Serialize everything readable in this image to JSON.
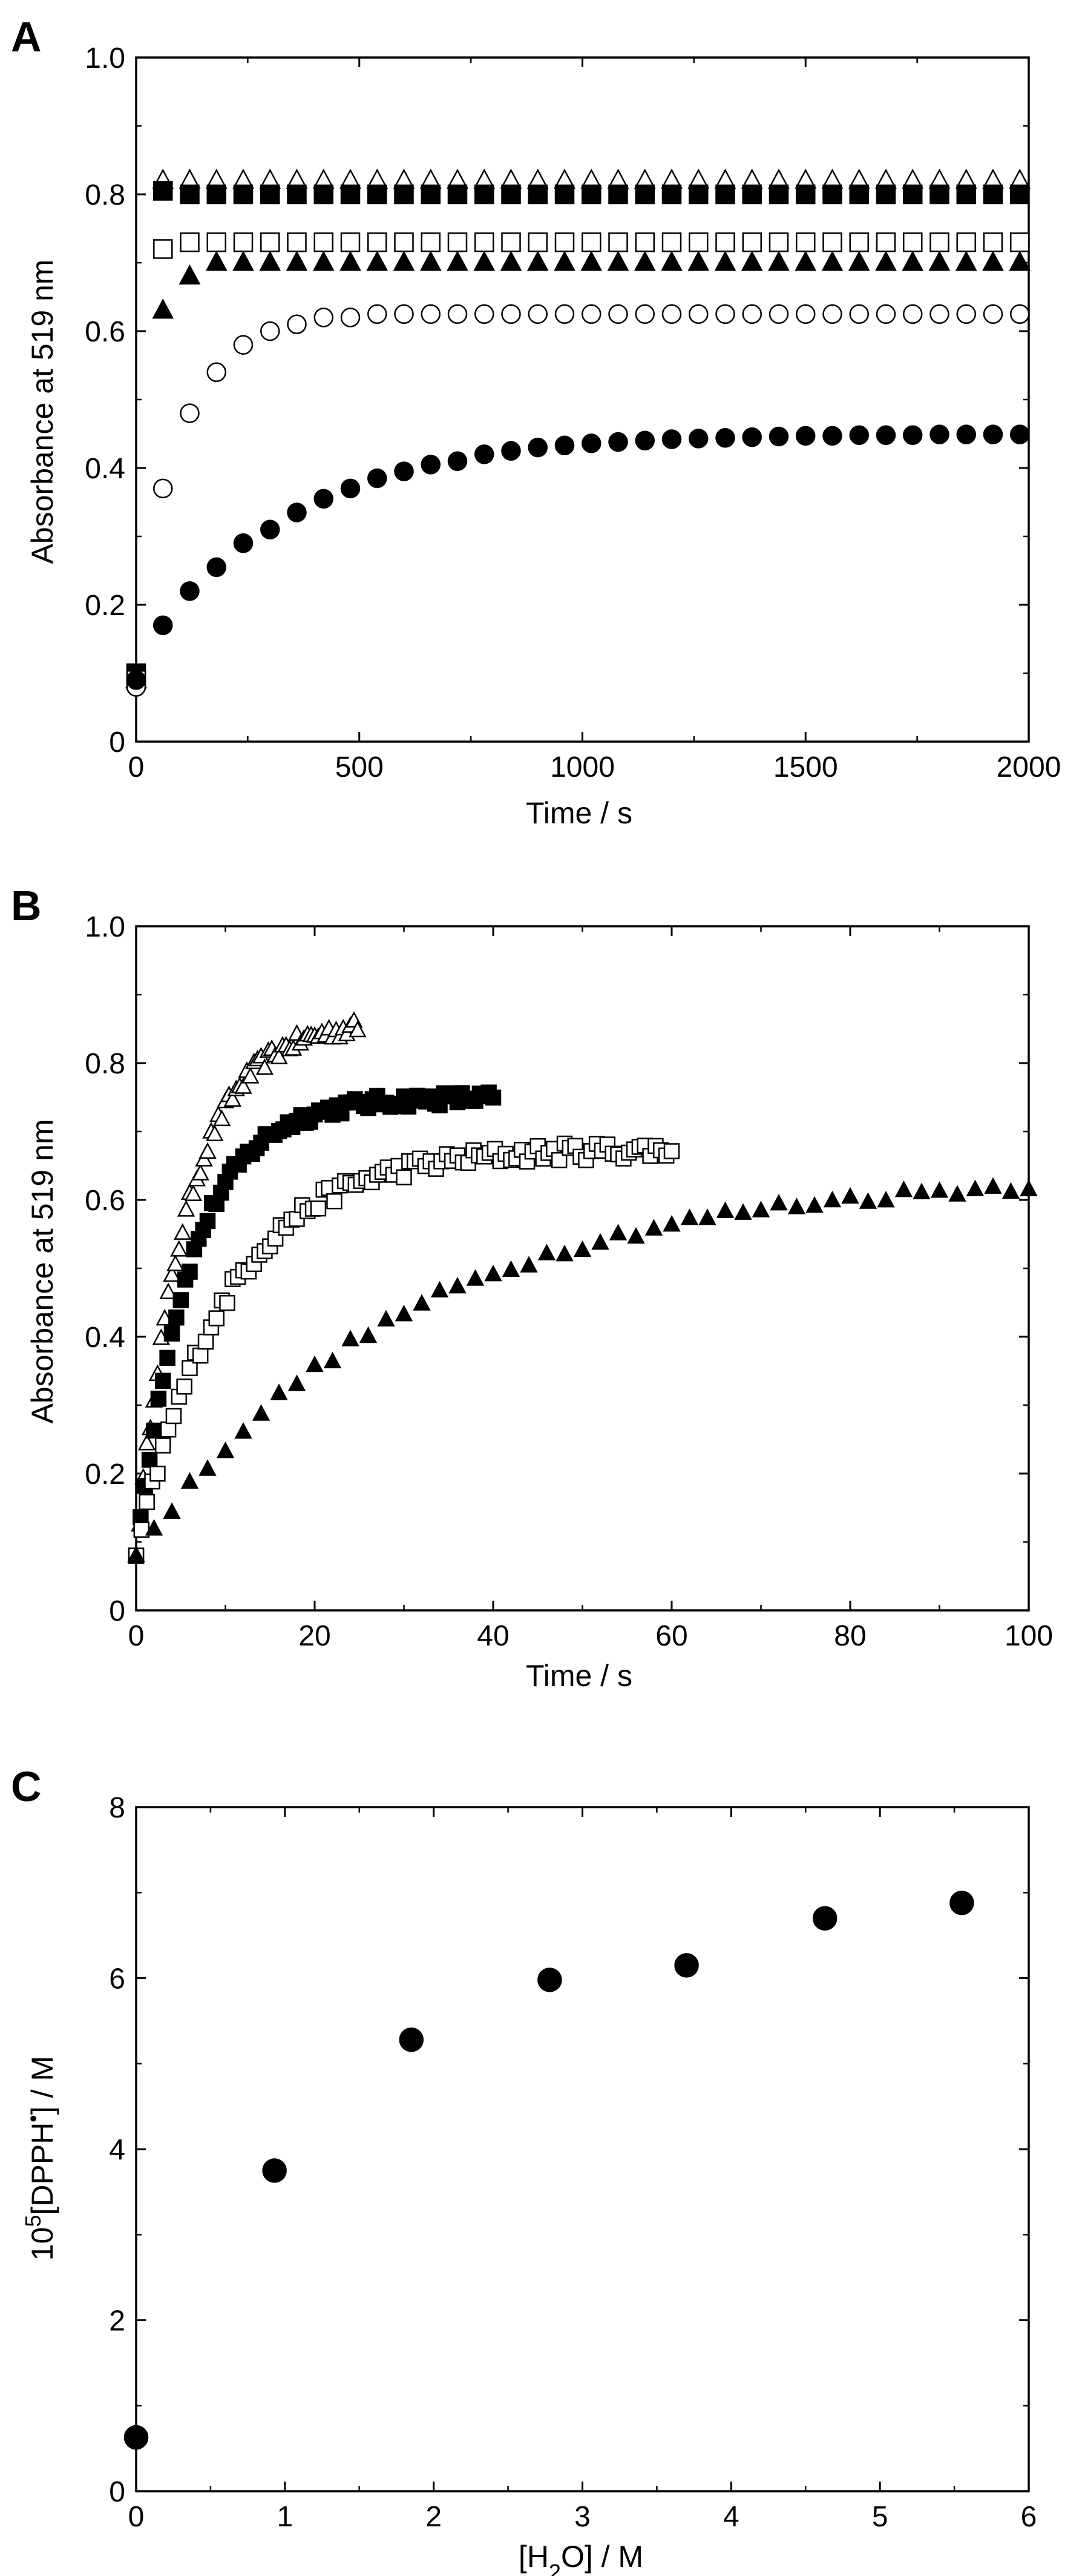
{
  "chart_data": [
    {
      "type": "scatter",
      "panel": "A",
      "xlabel": "Time / s",
      "ylabel": "Absorbance at 519 nm",
      "xlim": [
        0,
        2000
      ],
      "ylim": [
        0,
        1.0
      ],
      "xticks": [
        "0",
        "500",
        "1000",
        "1500",
        "2000"
      ],
      "yticks": [
        "0",
        "0.2",
        "0.4",
        "0.6",
        "0.8",
        "1.0"
      ],
      "grid": false,
      "series": [
        {
          "name": "open-triangle",
          "marker": "triangle-open",
          "x": [
            0,
            60,
            120,
            180,
            240,
            300,
            360,
            420,
            480,
            540,
            600,
            660,
            720,
            780,
            840,
            900,
            960,
            1020,
            1080,
            1140,
            1200,
            1260,
            1320,
            1380,
            1440,
            1500,
            1560,
            1620,
            1680,
            1740,
            1800,
            1860,
            1920,
            1980
          ],
          "y": [
            0.09,
            0.82,
            0.82,
            0.82,
            0.82,
            0.82,
            0.82,
            0.82,
            0.82,
            0.82,
            0.82,
            0.82,
            0.82,
            0.82,
            0.82,
            0.82,
            0.82,
            0.82,
            0.82,
            0.82,
            0.82,
            0.82,
            0.82,
            0.82,
            0.82,
            0.82,
            0.82,
            0.82,
            0.82,
            0.82,
            0.82,
            0.82,
            0.82,
            0.82
          ]
        },
        {
          "name": "filled-square",
          "marker": "square-filled",
          "x": [
            0,
            60,
            120,
            180,
            240,
            300,
            360,
            420,
            480,
            540,
            600,
            660,
            720,
            780,
            840,
            900,
            960,
            1020,
            1080,
            1140,
            1200,
            1260,
            1320,
            1380,
            1440,
            1500,
            1560,
            1620,
            1680,
            1740,
            1800,
            1860,
            1920,
            1980
          ],
          "y": [
            0.1,
            0.805,
            0.8,
            0.8,
            0.8,
            0.8,
            0.8,
            0.8,
            0.8,
            0.8,
            0.8,
            0.8,
            0.8,
            0.8,
            0.8,
            0.8,
            0.8,
            0.8,
            0.8,
            0.8,
            0.8,
            0.8,
            0.8,
            0.8,
            0.8,
            0.8,
            0.8,
            0.8,
            0.8,
            0.8,
            0.8,
            0.8,
            0.8,
            0.8
          ]
        },
        {
          "name": "open-square",
          "marker": "square-open",
          "x": [
            0,
            60,
            120,
            180,
            240,
            300,
            360,
            420,
            480,
            540,
            600,
            660,
            720,
            780,
            840,
            900,
            960,
            1020,
            1080,
            1140,
            1200,
            1260,
            1320,
            1380,
            1440,
            1500,
            1560,
            1620,
            1680,
            1740,
            1800,
            1860,
            1920,
            1980
          ],
          "y": [
            0.09,
            0.72,
            0.73,
            0.73,
            0.73,
            0.73,
            0.73,
            0.73,
            0.73,
            0.73,
            0.73,
            0.73,
            0.73,
            0.73,
            0.73,
            0.73,
            0.73,
            0.73,
            0.73,
            0.73,
            0.73,
            0.73,
            0.73,
            0.73,
            0.73,
            0.73,
            0.73,
            0.73,
            0.73,
            0.73,
            0.73,
            0.73,
            0.73,
            0.73
          ]
        },
        {
          "name": "filled-triangle",
          "marker": "triangle-filled",
          "x": [
            0,
            60,
            120,
            180,
            240,
            300,
            360,
            420,
            480,
            540,
            600,
            660,
            720,
            780,
            840,
            900,
            960,
            1020,
            1080,
            1140,
            1200,
            1260,
            1320,
            1380,
            1440,
            1500,
            1560,
            1620,
            1680,
            1740,
            1800,
            1860,
            1920,
            1980
          ],
          "y": [
            0.09,
            0.63,
            0.68,
            0.7,
            0.7,
            0.7,
            0.7,
            0.7,
            0.7,
            0.7,
            0.7,
            0.7,
            0.7,
            0.7,
            0.7,
            0.7,
            0.7,
            0.7,
            0.7,
            0.7,
            0.7,
            0.7,
            0.7,
            0.7,
            0.7,
            0.7,
            0.7,
            0.7,
            0.7,
            0.7,
            0.7,
            0.7,
            0.7,
            0.7
          ]
        },
        {
          "name": "open-circle",
          "marker": "circle-open",
          "x": [
            0,
            60,
            120,
            180,
            240,
            300,
            360,
            420,
            480,
            540,
            600,
            660,
            720,
            780,
            840,
            900,
            960,
            1020,
            1080,
            1140,
            1200,
            1260,
            1320,
            1380,
            1440,
            1500,
            1560,
            1620,
            1680,
            1740,
            1800,
            1860,
            1920,
            1980
          ],
          "y": [
            0.08,
            0.37,
            0.48,
            0.54,
            0.58,
            0.6,
            0.61,
            0.62,
            0.62,
            0.625,
            0.625,
            0.625,
            0.625,
            0.625,
            0.625,
            0.625,
            0.625,
            0.625,
            0.625,
            0.625,
            0.625,
            0.625,
            0.625,
            0.625,
            0.625,
            0.625,
            0.625,
            0.625,
            0.625,
            0.625,
            0.625,
            0.625,
            0.625,
            0.625
          ]
        },
        {
          "name": "filled-circle",
          "marker": "circle-filled",
          "x": [
            0,
            60,
            120,
            180,
            240,
            300,
            360,
            420,
            480,
            540,
            600,
            660,
            720,
            780,
            840,
            900,
            960,
            1020,
            1080,
            1140,
            1200,
            1260,
            1320,
            1380,
            1440,
            1500,
            1560,
            1620,
            1680,
            1740,
            1800,
            1860,
            1920,
            1980
          ],
          "y": [
            0.09,
            0.17,
            0.22,
            0.255,
            0.29,
            0.31,
            0.335,
            0.355,
            0.37,
            0.385,
            0.395,
            0.405,
            0.41,
            0.42,
            0.425,
            0.43,
            0.433,
            0.436,
            0.438,
            0.44,
            0.442,
            0.443,
            0.444,
            0.445,
            0.446,
            0.447,
            0.447,
            0.448,
            0.448,
            0.448,
            0.449,
            0.449,
            0.449,
            0.449
          ]
        }
      ]
    },
    {
      "type": "scatter",
      "panel": "B",
      "xlabel": "Time / s",
      "ylabel": "Absorbance at 519 nm",
      "xlim": [
        0,
        100
      ],
      "ylim": [
        0,
        1.0
      ],
      "xticks": [
        "0",
        "20",
        "40",
        "60",
        "80",
        "100"
      ],
      "yticks": [
        "0",
        "0.2",
        "0.4",
        "0.6",
        "0.8",
        "1.0"
      ],
      "grid": false,
      "series": [
        {
          "name": "open-triangle",
          "marker": "triangle-open",
          "curve": {
            "A0": 0.08,
            "Ainf": 0.86,
            "tau": 5.5,
            "xmax": 25,
            "dx": 0.4,
            "noise": 0.012
          }
        },
        {
          "name": "filled-square",
          "marker": "square-filled",
          "curve": {
            "A0": 0.08,
            "Ainf": 0.75,
            "tau": 6.0,
            "xmax": 40,
            "dx": 0.5,
            "noise": 0.01
          }
        },
        {
          "name": "open-square",
          "marker": "square-open",
          "curve": {
            "A0": 0.08,
            "Ainf": 0.675,
            "tau": 10.0,
            "xmax": 60,
            "dx": 0.6,
            "noise": 0.013
          }
        },
        {
          "name": "filled-triangle",
          "marker": "triangle-filled",
          "curve": {
            "A0": 0.08,
            "Ainf": 0.64,
            "tau": 30.0,
            "xmax": 100,
            "dx": 2.0,
            "noise": 0.008
          }
        }
      ]
    },
    {
      "type": "scatter",
      "panel": "C",
      "xlabel": "[H2O] / M",
      "ylabel": "10^5[DPPH•] / M",
      "xlim": [
        0,
        6
      ],
      "ylim": [
        0,
        8
      ],
      "xticks": [
        "0",
        "1",
        "2",
        "3",
        "4",
        "5",
        "6"
      ],
      "yticks": [
        "0",
        "2",
        "4",
        "6",
        "8"
      ],
      "grid": false,
      "series": [
        {
          "name": "DPPH",
          "marker": "circle-filled",
          "x": [
            0,
            0.93,
            1.85,
            2.78,
            3.7,
            4.63,
            5.55
          ],
          "y": [
            0.63,
            3.75,
            5.28,
            5.98,
            6.15,
            6.7,
            6.88
          ]
        }
      ]
    }
  ],
  "panels": {
    "A": {
      "letter": "A"
    },
    "B": {
      "letter": "B"
    },
    "C": {
      "letter": "C"
    }
  },
  "labels": {
    "c_xlabel_open": "[H",
    "c_xlabel_sub": "2",
    "c_xlabel_close": "O] / M",
    "c_ylabel_pre": "10",
    "c_ylabel_sup": "5",
    "c_ylabel_mid": "[DPPH",
    "c_ylabel_dot": "•",
    "c_ylabel_post": "] / M"
  }
}
